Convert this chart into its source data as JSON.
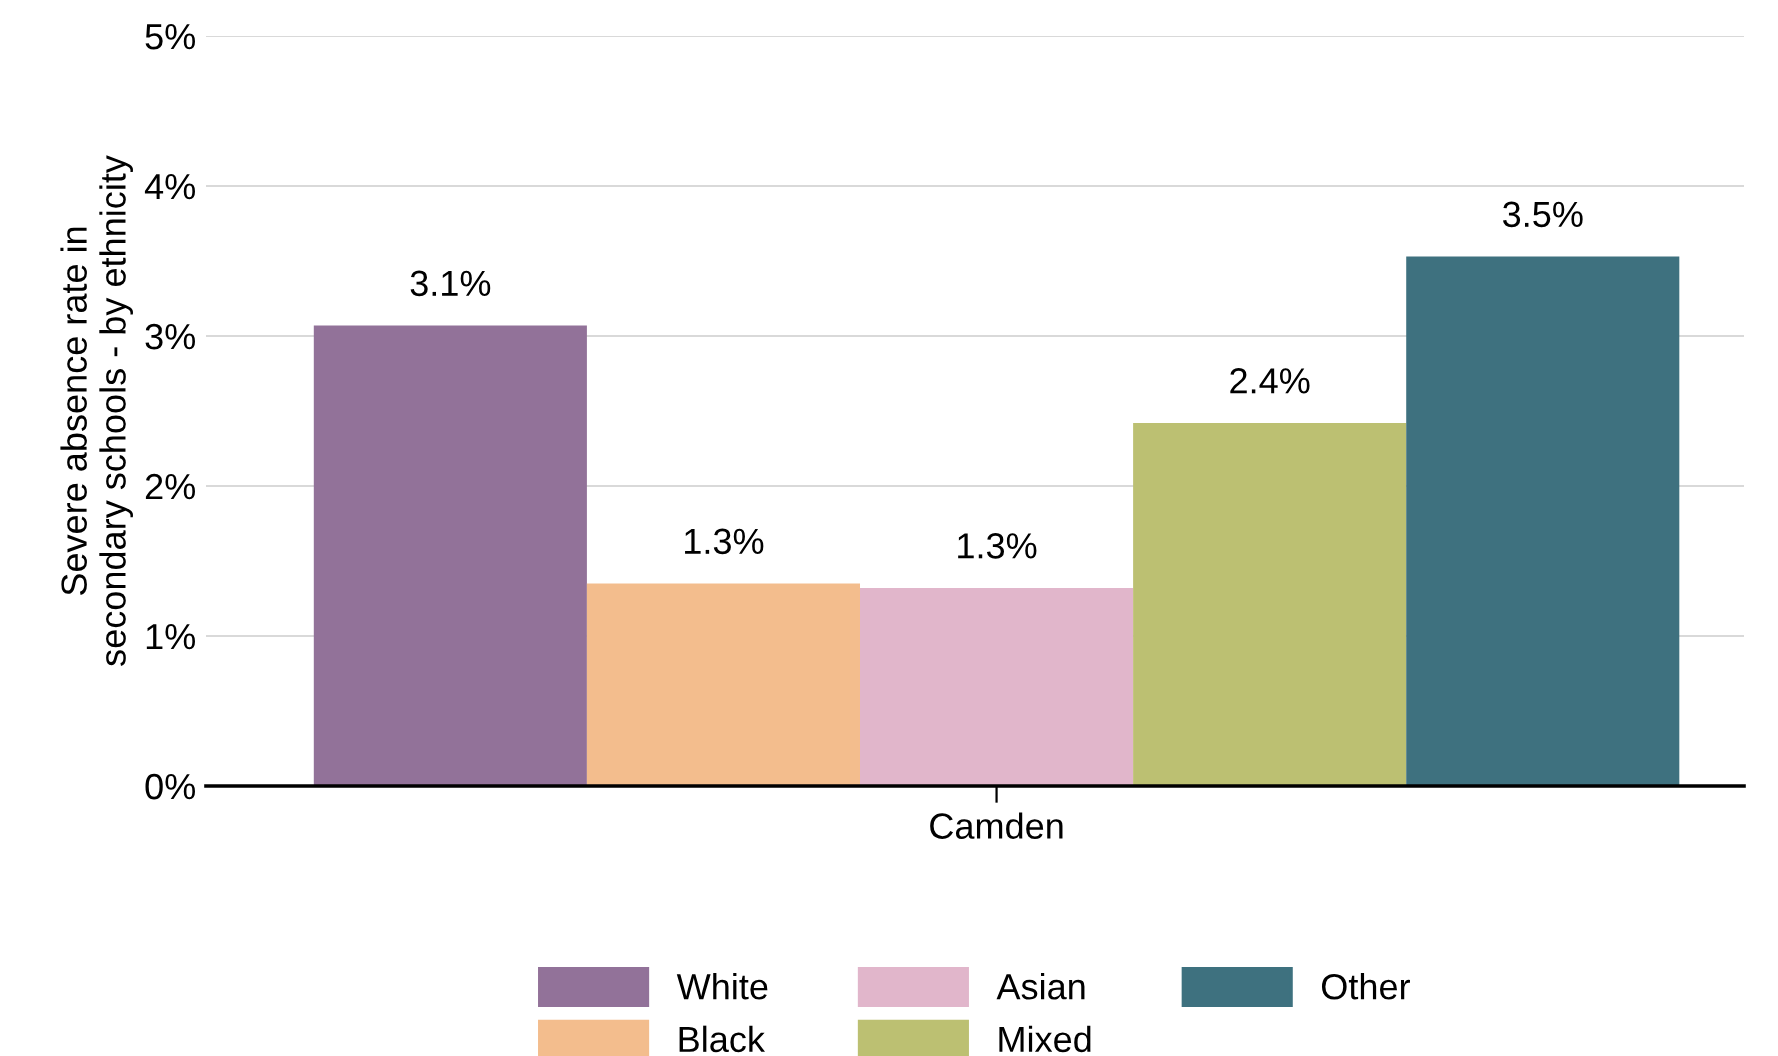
{
  "chart_data": {
    "type": "bar",
    "categories": [
      "Camden"
    ],
    "ylabel": "Severe absence rate in\nsecondary schools - by ethnicity",
    "series": [
      {
        "name": "White",
        "color": "#927299",
        "values": [
          3.07
        ],
        "value_labels": [
          "3.1%"
        ]
      },
      {
        "name": "Black",
        "color": "#f3bd8d",
        "values": [
          1.35
        ],
        "value_labels": [
          "1.3%"
        ]
      },
      {
        "name": "Asian",
        "color": "#e1b6cb",
        "values": [
          1.32
        ],
        "value_labels": [
          "1.3%"
        ]
      },
      {
        "name": "Mixed",
        "color": "#bcc072",
        "values": [
          2.42
        ],
        "value_labels": [
          "2.4%"
        ]
      },
      {
        "name": "Other",
        "color": "#3e717f",
        "values": [
          3.53
        ],
        "value_labels": [
          "3.5%"
        ]
      }
    ],
    "ylim": [
      0,
      5
    ],
    "yticks": [
      {
        "value": 0,
        "label": "0%"
      },
      {
        "value": 1,
        "label": "1%"
      },
      {
        "value": 2,
        "label": "2%"
      },
      {
        "value": 3,
        "label": "3%"
      },
      {
        "value": 4,
        "label": "4%"
      },
      {
        "value": 5,
        "label": "5%"
      }
    ],
    "grid": "y",
    "legend": "bottom"
  }
}
